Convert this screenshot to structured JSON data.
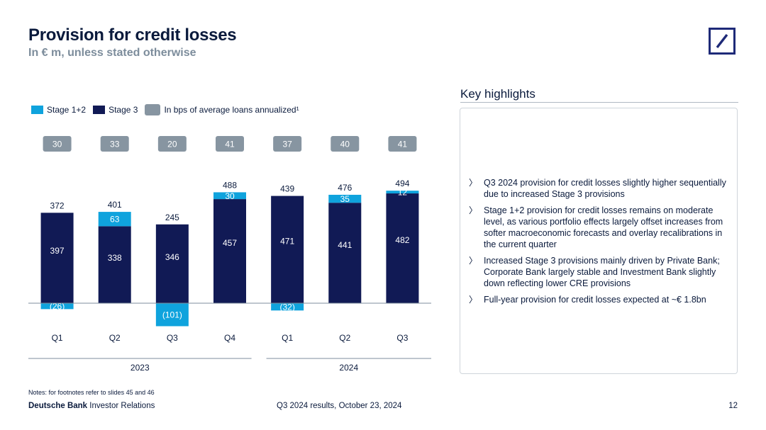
{
  "header": {
    "title": "Provision for credit losses",
    "subtitle": "In € m, unless stated otherwise"
  },
  "legend": {
    "stage12": "Stage 1+2",
    "stage3": "Stage 3",
    "bps": "In bps of average loans annualized¹"
  },
  "colors": {
    "stage12": "#0fa3dd",
    "stage3": "#111a55",
    "bps": "#8795a1",
    "brand": "#1e2a78"
  },
  "chart_data": {
    "type": "bar",
    "stacked": true,
    "categories": [
      "Q1",
      "Q2",
      "Q3",
      "Q4",
      "Q1",
      "Q2",
      "Q3"
    ],
    "year_groups": [
      {
        "label": "2023",
        "count": 4
      },
      {
        "label": "2024",
        "count": 3
      }
    ],
    "series": [
      {
        "name": "Stage 3",
        "values": [
          397,
          338,
          346,
          457,
          471,
          441,
          482
        ]
      },
      {
        "name": "Stage 1+2",
        "values": [
          -26,
          63,
          -101,
          30,
          -32,
          35,
          12
        ]
      }
    ],
    "stage12_labels": [
      "(26)",
      "63",
      "(101)",
      "30",
      "(32)",
      "35",
      "12"
    ],
    "totals": [
      372,
      401,
      245,
      488,
      439,
      476,
      494
    ],
    "bps": [
      30,
      33,
      20,
      41,
      37,
      40,
      41
    ]
  },
  "highlights": {
    "title": "Key highlights",
    "items": [
      "Q3 2024 provision for credit losses slightly higher sequentially due to increased Stage 3 provisions",
      "Stage 1+2 provision for credit losses remains on moderate level, as various portfolio effects largely offset increases from softer macroeconomic forecasts and overlay recalibrations in the current quarter",
      "Increased Stage 3 provisions mainly driven by Private Bank; Corporate Bank largely stable and Investment Bank slightly down reflecting lower CRE provisions",
      "Full-year provision for credit losses expected at ~€ 1.8bn"
    ],
    "bullet": "〉"
  },
  "footer": {
    "notes": "Notes: for footnotes refer to slides 45 and 46",
    "brand_bold": "Deutsche Bank",
    "brand_rest": " Investor Relations",
    "event": "Q3 2024 results, October 23, 2024",
    "page": "12"
  }
}
